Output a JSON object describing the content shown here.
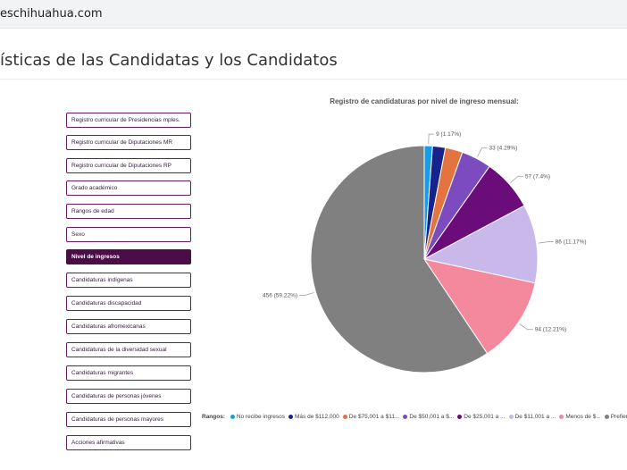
{
  "browser": {
    "url": "eschihuahua.com"
  },
  "page": {
    "title": "ísticas de las Candidatas y los Candidatos"
  },
  "menu": {
    "items": [
      {
        "label": "Registro curricular de Presidencias mples.",
        "active": false
      },
      {
        "label": "Registro curricular de Diputaciones MR",
        "active": false
      },
      {
        "label": "Registro curricular de Diputaciones RP",
        "active": false
      },
      {
        "label": "Grado académico",
        "active": false
      },
      {
        "label": "Rangos de edad",
        "active": false
      },
      {
        "label": "Sexo",
        "active": false
      },
      {
        "label": "Nivel de ingresos",
        "active": true
      },
      {
        "label": "Candidaturas indígenas",
        "active": false
      },
      {
        "label": "Candidaturas discapacidad",
        "active": false
      },
      {
        "label": "Candidaturas afromexicanas",
        "active": false
      },
      {
        "label": "Candidaturas de la diversidad sexual",
        "active": false
      },
      {
        "label": "Candidaturas migrantes",
        "active": false
      },
      {
        "label": "Candidaturas de personas jóvenes",
        "active": false
      },
      {
        "label": "Candidaturas de personas mayores",
        "active": false
      },
      {
        "label": "Acciones afirmativas",
        "active": false
      }
    ]
  },
  "chart_data": {
    "type": "pie",
    "title": "Registro de candidaturas por nivel de ingreso mensual:",
    "legend_title": "Rangos:",
    "slices": [
      {
        "name": "No recibe ingresos",
        "value": 9,
        "percent": 1.17,
        "label": "9 (1.17%)",
        "color": "#1a9be6"
      },
      {
        "name": "Más de $112,000",
        "value": 14,
        "percent": 1.82,
        "label": "",
        "color": "#17238c"
      },
      {
        "name": "De $75,001 a $11...",
        "value": 19,
        "percent": 2.47,
        "label": "",
        "color": "#e4743f"
      },
      {
        "name": "De $50,001 a $...",
        "value": 33,
        "percent": 4.29,
        "label": "33 (4.29%)",
        "color": "#7b4bbf"
      },
      {
        "name": "De $25,001 a ...",
        "value": 57,
        "percent": 7.4,
        "label": "57 (7.4%)",
        "color": "#6a0c7a"
      },
      {
        "name": "De $11,001 a ...",
        "value": 86,
        "percent": 11.17,
        "label": "86 (11.17%)",
        "color": "#c9b8ea"
      },
      {
        "name": "Menos de $...",
        "value": 94,
        "percent": 12.21,
        "label": "94 (12.21%)",
        "color": "#f4899e"
      },
      {
        "name": "Prefiero...",
        "value": 456,
        "percent": 59.22,
        "label": "456 (59.22%)",
        "color": "#808080"
      }
    ]
  }
}
